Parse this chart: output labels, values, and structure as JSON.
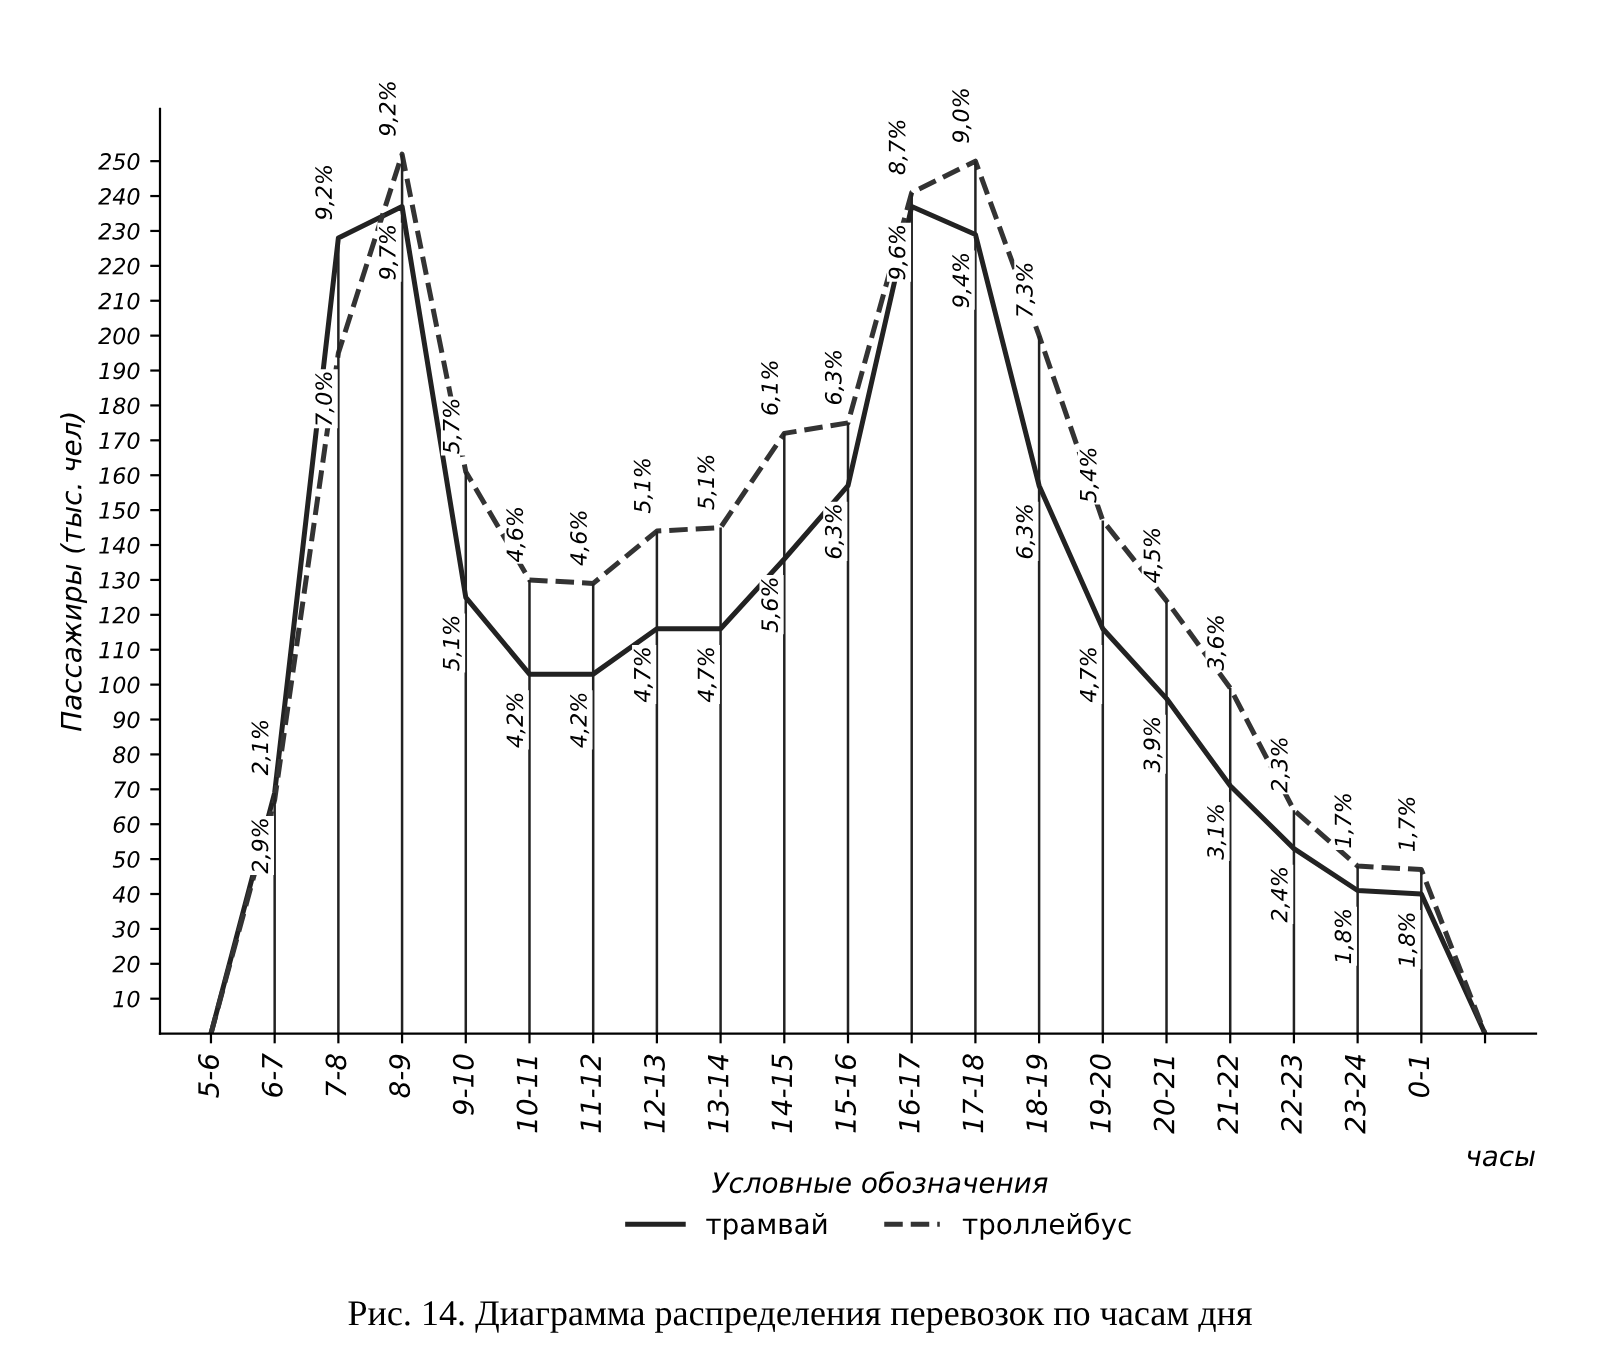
{
  "chart_data": {
    "type": "line",
    "title": "Рис. 14. Диаграмма распределения перевозок по часам дня",
    "ylabel": "Пассажиры (тыс. чел)",
    "xlabel": "часы",
    "legend_title": "Условные обозначения",
    "legend": "bottom",
    "grid": "x",
    "categories": [
      "5-6",
      "6-7",
      "7-8",
      "8-9",
      "9-10",
      "10-11",
      "11-12",
      "12-13",
      "13-14",
      "14-15",
      "15-16",
      "16-17",
      "17-18",
      "18-19",
      "19-20",
      "20-21",
      "21-22",
      "22-23",
      "23-24",
      "0-1",
      null
    ],
    "ylim": [
      0,
      265
    ],
    "yticks": [
      10,
      20,
      30,
      40,
      50,
      60,
      70,
      80,
      90,
      100,
      110,
      120,
      130,
      140,
      150,
      160,
      170,
      180,
      190,
      200,
      210,
      220,
      230,
      240,
      250
    ],
    "series": [
      {
        "name": "трамвай",
        "color": "#222222",
        "line_style": "solid",
        "values": [
          0,
          69,
          228,
          237,
          125,
          103,
          103,
          116,
          116,
          136,
          157,
          237,
          229,
          157,
          116,
          96,
          71,
          53,
          41,
          40,
          0
        ]
      },
      {
        "name": "троллейбус",
        "color": "#333333",
        "line_style": "dashed",
        "values": [
          0,
          67,
          195,
          252,
          161,
          130,
          129,
          144,
          145,
          172,
          175,
          241,
          250,
          200,
          147,
          124,
          99,
          64,
          48,
          47,
          0
        ]
      }
    ],
    "annotations": [
      {
        "text": "2,1%",
        "x": "6-7",
        "y": 69
      },
      {
        "text": "9,2%",
        "x": "7-8",
        "y": 228
      },
      {
        "text": "9,7%",
        "x": "8-9",
        "y": 237
      },
      {
        "text": "5,1%",
        "x": "9-10",
        "y": 125
      },
      {
        "text": "4,2%",
        "x": "10-11",
        "y": 103
      },
      {
        "text": "4,2%",
        "x": "11-12",
        "y": 103
      },
      {
        "text": "4,7%",
        "x": "12-13",
        "y": 116
      },
      {
        "text": "4,7%",
        "x": "13-14",
        "y": 116
      },
      {
        "text": "5,6%",
        "x": "14-15",
        "y": 136
      },
      {
        "text": "6,3%",
        "x": "15-16",
        "y": 157
      },
      {
        "text": "9,6%",
        "x": "16-17",
        "y": 237
      },
      {
        "text": "9,4%",
        "x": "17-18",
        "y": 229
      },
      {
        "text": "6,3%",
        "x": "18-19",
        "y": 157
      },
      {
        "text": "4,7%",
        "x": "19-20",
        "y": 116
      },
      {
        "text": "3,9%",
        "x": "20-21",
        "y": 96
      },
      {
        "text": "3,1%",
        "x": "21-22",
        "y": 71
      },
      {
        "text": "2,4%",
        "x": "22-23",
        "y": 53
      },
      {
        "text": "1,8%",
        "x": "23-24",
        "y": 41
      },
      {
        "text": "1,8%",
        "x": "0-1",
        "y": 40
      },
      {
        "text": "2,9%",
        "x": "6-7",
        "y": 67
      },
      {
        "text": "7,0%",
        "x": "7-8",
        "y": 195
      },
      {
        "text": "9,2%",
        "x": "8-9",
        "y": 252
      },
      {
        "text": "5,7%",
        "x": "9-10",
        "y": 161
      },
      {
        "text": "4,6%",
        "x": "10-11",
        "y": 130
      },
      {
        "text": "4,6%",
        "x": "11-12",
        "y": 129
      },
      {
        "text": "5,1%",
        "x": "12-13",
        "y": 144
      },
      {
        "text": "5,1%",
        "x": "13-14",
        "y": 145
      },
      {
        "text": "6,1%",
        "x": "14-15",
        "y": 172
      },
      {
        "text": "6,3%",
        "x": "15-16",
        "y": 175
      },
      {
        "text": "8,7%",
        "x": "16-17",
        "y": 241
      },
      {
        "text": "9,0%",
        "x": "17-18",
        "y": 250
      },
      {
        "text": "7,3%",
        "x": "18-19",
        "y": 200
      },
      {
        "text": "5,4%",
        "x": "19-20",
        "y": 147
      },
      {
        "text": "4,5%",
        "x": "20-21",
        "y": 124
      },
      {
        "text": "3,6%",
        "x": "21-22",
        "y": 99
      },
      {
        "text": "2,3%",
        "x": "22-23",
        "y": 64
      },
      {
        "text": "1,7%",
        "x": "23-24",
        "y": 48
      },
      {
        "text": "1,7%",
        "x": "0-1",
        "y": 47
      }
    ]
  }
}
